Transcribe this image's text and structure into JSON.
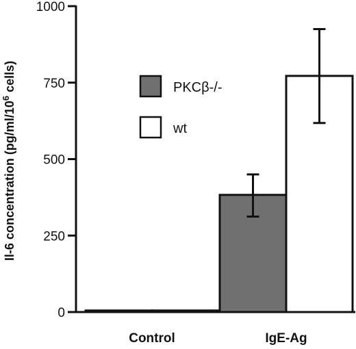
{
  "chart_data": {
    "type": "bar",
    "categories": [
      "Control",
      "IgE-Ag"
    ],
    "series": [
      {
        "name": "PKCβ-/-",
        "color": "#707070",
        "values": [
          5,
          383
        ],
        "error_high": [
          0,
          450
        ],
        "error_low": [
          0,
          312
        ]
      },
      {
        "name": "wt",
        "color": "#ffffff",
        "values": [
          5,
          772
        ],
        "error_high": [
          0,
          925
        ],
        "error_low": [
          0,
          618
        ]
      }
    ],
    "ylabel_parts": [
      "Il-6 concentration (pg/ml/10",
      "6",
      " cells)"
    ],
    "yticks": [
      "0",
      "250",
      "500",
      "750",
      "1000"
    ],
    "ylim": [
      0,
      1000
    ],
    "legend_position": "upper-middle"
  }
}
